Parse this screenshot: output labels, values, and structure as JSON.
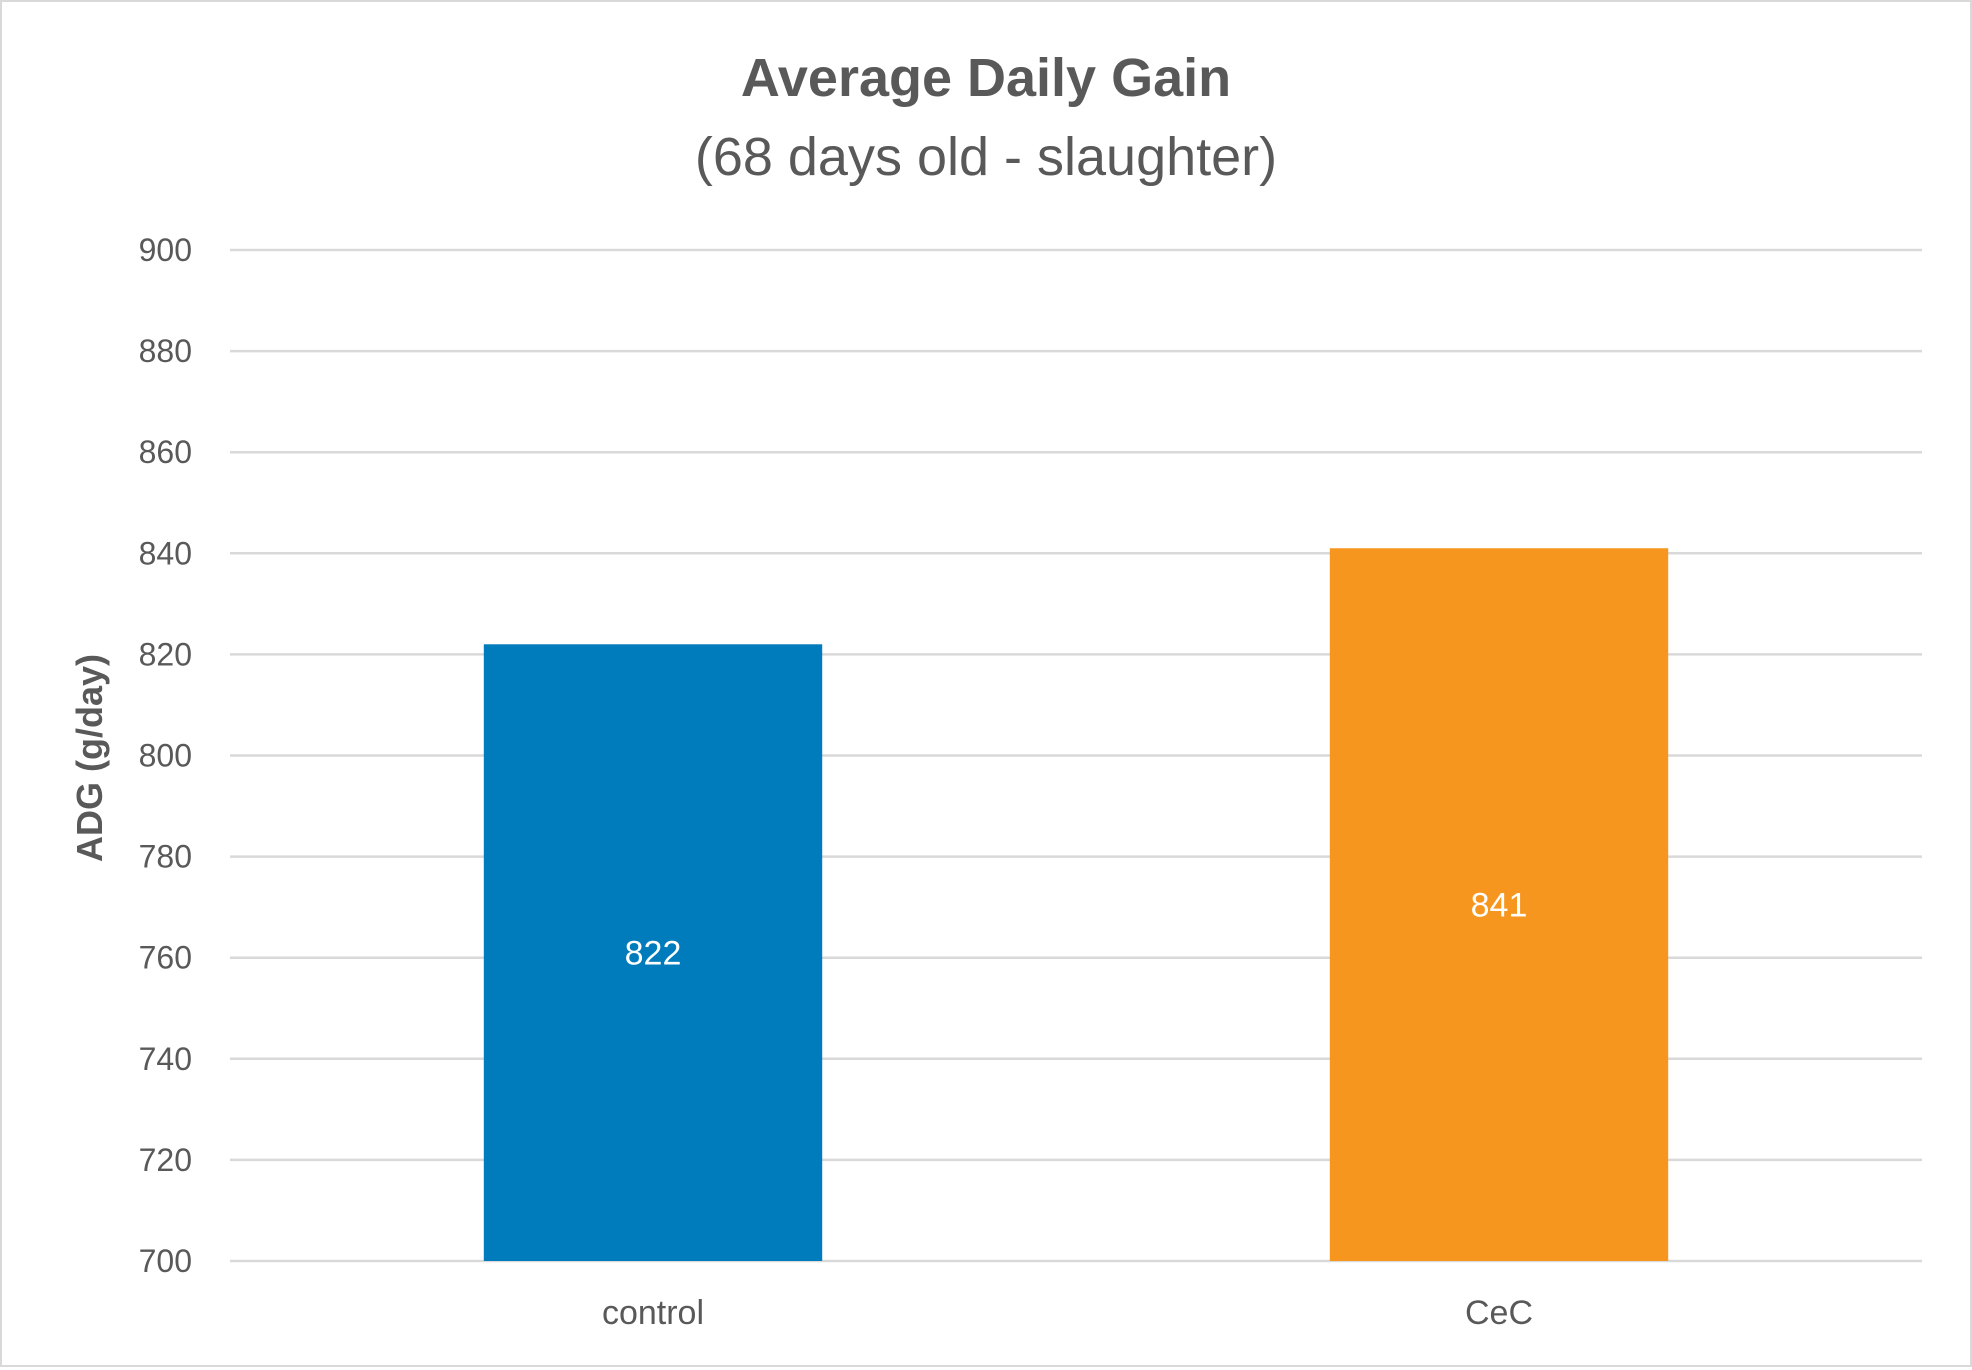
{
  "chart_data": {
    "type": "bar",
    "title": "Average Daily Gain",
    "subtitle": "(68 days old - slaughter)",
    "xlabel": "",
    "ylabel": "ADG (g/day)",
    "categories": [
      "control",
      "CeC"
    ],
    "values": [
      822,
      841
    ],
    "colors": [
      "#007BBB",
      "#F7961E"
    ],
    "ylim": [
      700,
      900
    ],
    "yticks": [
      700,
      720,
      740,
      760,
      780,
      800,
      820,
      840,
      860,
      880,
      900
    ],
    "grid": true,
    "legend": "none",
    "data_labels": [
      "822",
      "841"
    ]
  }
}
